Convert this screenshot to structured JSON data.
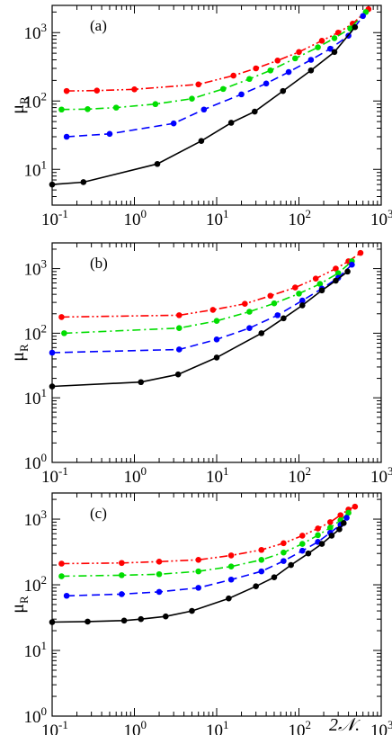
{
  "figure": {
    "xlabel": "2𝒩.",
    "ylabel_main": "μ",
    "ylabel_sub": "R"
  },
  "colors": {
    "s1": "#ff0000",
    "s2": "#00dd00",
    "s3": "#0000ff",
    "s4": "#000000"
  },
  "chart_data": [
    {
      "type": "line",
      "panel_label": "(a)",
      "xscale": "log",
      "yscale": "log",
      "xlim": [
        0.1,
        1000
      ],
      "ylim": [
        3,
        2500
      ],
      "xticks": [
        0.1,
        1,
        10,
        100,
        1000
      ],
      "yticks": [
        10,
        100,
        1000
      ],
      "xtick_labels": [
        {
          "base": "10",
          "exp": "-1"
        },
        {
          "base": "10",
          "exp": "0"
        },
        {
          "base": "10",
          "exp": "1"
        },
        {
          "base": "10",
          "exp": "2"
        },
        {
          "base": "10",
          "exp": "3"
        }
      ],
      "ytick_labels": [
        {
          "base": "10",
          "exp": "1"
        },
        {
          "base": "10",
          "exp": "2"
        },
        {
          "base": "10",
          "exp": "3"
        }
      ],
      "series": [
        {
          "style": "dash-dot-dot",
          "color_key": "s1",
          "points": [
            [
              0.15,
              140
            ],
            [
              0.35,
              142
            ],
            [
              1,
              148
            ],
            [
              6,
              175
            ],
            [
              16,
              235
            ],
            [
              30,
              300
            ],
            [
              55,
              390
            ],
            [
              100,
              520
            ],
            [
              190,
              760
            ],
            [
              300,
              1000
            ],
            [
              450,
              1350
            ],
            [
              700,
              2200
            ]
          ]
        },
        {
          "style": "dash-dot",
          "color_key": "s2",
          "points": [
            [
              0.13,
              75
            ],
            [
              0.27,
              76
            ],
            [
              0.6,
              80
            ],
            [
              1.8,
              90
            ],
            [
              5,
              108
            ],
            [
              12,
              150
            ],
            [
              25,
              210
            ],
            [
              45,
              280
            ],
            [
              90,
              420
            ],
            [
              170,
              610
            ],
            [
              270,
              830
            ],
            [
              420,
              1150
            ],
            [
              650,
              2000
            ]
          ]
        },
        {
          "style": "dashed",
          "color_key": "s3",
          "points": [
            [
              0.15,
              30
            ],
            [
              0.5,
              33
            ],
            [
              3,
              47
            ],
            [
              7,
              75
            ],
            [
              20,
              125
            ],
            [
              40,
              180
            ],
            [
              75,
              265
            ],
            [
              140,
              400
            ],
            [
              240,
              580
            ],
            [
              400,
              900
            ],
            [
              600,
              1750
            ]
          ]
        },
        {
          "style": "solid",
          "color_key": "s4",
          "points": [
            [
              0.1,
              6
            ],
            [
              0.24,
              6.5
            ],
            [
              1.9,
              12
            ],
            [
              6.5,
              26
            ],
            [
              15,
              48
            ],
            [
              29,
              70
            ],
            [
              64,
              140
            ],
            [
              140,
              280
            ],
            [
              270,
              520
            ],
            [
              480,
              1200
            ]
          ]
        }
      ]
    },
    {
      "type": "line",
      "panel_label": "(b)",
      "xscale": "log",
      "yscale": "log",
      "xlim": [
        0.1,
        1000
      ],
      "ylim": [
        1,
        2500
      ],
      "xticks": [
        0.1,
        1,
        10,
        100,
        1000
      ],
      "yticks": [
        1,
        10,
        100,
        1000
      ],
      "xtick_labels": [
        {
          "base": "10",
          "exp": "-1"
        },
        {
          "base": "10",
          "exp": "0"
        },
        {
          "base": "10",
          "exp": "1"
        },
        {
          "base": "10",
          "exp": "2"
        },
        {
          "base": "10",
          "exp": "3"
        }
      ],
      "ytick_labels": [
        {
          "base": "10",
          "exp": "0"
        },
        {
          "base": "10",
          "exp": "1"
        },
        {
          "base": "10",
          "exp": "2"
        },
        {
          "base": "10",
          "exp": "3"
        }
      ],
      "series": [
        {
          "style": "dash-dot-dot",
          "color_key": "s1",
          "points": [
            [
              0.13,
              178
            ],
            [
              3.5,
              190
            ],
            [
              9,
              230
            ],
            [
              22,
              285
            ],
            [
              45,
              380
            ],
            [
              90,
              510
            ],
            [
              160,
              700
            ],
            [
              280,
              1000
            ],
            [
              400,
              1300
            ],
            [
              560,
              1750
            ]
          ]
        },
        {
          "style": "dash-dot",
          "color_key": "s2",
          "points": [
            [
              0.14,
              100
            ],
            [
              3.5,
              120
            ],
            [
              10,
              155
            ],
            [
              25,
              215
            ],
            [
              50,
              290
            ],
            [
              100,
              410
            ],
            [
              180,
              580
            ],
            [
              300,
              850
            ],
            [
              440,
              1300
            ]
          ]
        },
        {
          "style": "dashed",
          "color_key": "s3",
          "points": [
            [
              0.1,
              50
            ],
            [
              3.5,
              56
            ],
            [
              10,
              80
            ],
            [
              25,
              120
            ],
            [
              55,
              190
            ],
            [
              110,
              320
            ],
            [
              190,
              490
            ],
            [
              300,
              720
            ],
            [
              440,
              1150
            ]
          ]
        },
        {
          "style": "solid",
          "color_key": "s4",
          "points": [
            [
              0.1,
              15
            ],
            [
              1.2,
              17.5
            ],
            [
              3.4,
              23
            ],
            [
              10,
              42
            ],
            [
              35,
              100
            ],
            [
              65,
              170
            ],
            [
              110,
              270
            ],
            [
              190,
              460
            ],
            [
              280,
              650
            ],
            [
              390,
              900
            ]
          ]
        }
      ]
    },
    {
      "type": "line",
      "panel_label": "(c)",
      "xscale": "log",
      "yscale": "log",
      "xlim": [
        0.1,
        1000
      ],
      "ylim": [
        1,
        2500
      ],
      "xticks": [
        0.1,
        1,
        10,
        100,
        1000
      ],
      "yticks": [
        1,
        10,
        100,
        1000
      ],
      "xtick_labels": [
        {
          "base": "10",
          "exp": "-1"
        },
        {
          "base": "10",
          "exp": "0"
        },
        {
          "base": "10",
          "exp": "1"
        },
        {
          "base": "10",
          "exp": "2"
        },
        {
          "base": "10",
          "exp": "3"
        }
      ],
      "ytick_labels": [
        {
          "base": "10",
          "exp": "0"
        },
        {
          "base": "10",
          "exp": "1"
        },
        {
          "base": "10",
          "exp": "2"
        },
        {
          "base": "10",
          "exp": "3"
        }
      ],
      "series": [
        {
          "style": "dash-dot-dot",
          "color_key": "s1",
          "points": [
            [
              0.13,
              210
            ],
            [
              0.7,
              215
            ],
            [
              2,
              225
            ],
            [
              6,
              240
            ],
            [
              15,
              280
            ],
            [
              35,
              340
            ],
            [
              65,
              430
            ],
            [
              110,
              560
            ],
            [
              170,
              720
            ],
            [
              240,
              900
            ],
            [
              320,
              1150
            ],
            [
              400,
              1400
            ],
            [
              480,
              1550
            ]
          ]
        },
        {
          "style": "dash-dot",
          "color_key": "s2",
          "points": [
            [
              0.13,
              135
            ],
            [
              0.7,
              140
            ],
            [
              2,
              145
            ],
            [
              6,
              160
            ],
            [
              15,
              190
            ],
            [
              35,
              240
            ],
            [
              65,
              310
            ],
            [
              110,
              420
            ],
            [
              170,
              570
            ],
            [
              240,
              740
            ],
            [
              320,
              960
            ],
            [
              400,
              1250
            ]
          ]
        },
        {
          "style": "dashed",
          "color_key": "s3",
          "points": [
            [
              0.15,
              68
            ],
            [
              0.7,
              72
            ],
            [
              2,
              78
            ],
            [
              6,
              90
            ],
            [
              15,
              120
            ],
            [
              35,
              160
            ],
            [
              65,
              230
            ],
            [
              110,
              330
            ],
            [
              170,
              450
            ],
            [
              240,
              620
            ],
            [
              320,
              820
            ],
            [
              380,
              1050
            ]
          ]
        },
        {
          "style": "solid",
          "color_key": "s4",
          "points": [
            [
              0.1,
              27
            ],
            [
              0.27,
              27.5
            ],
            [
              0.75,
              28.5
            ],
            [
              1.2,
              30
            ],
            [
              2.4,
              33
            ],
            [
              5,
              40
            ],
            [
              14,
              62
            ],
            [
              30,
              95
            ],
            [
              50,
              130
            ],
            [
              80,
              200
            ],
            [
              130,
              300
            ],
            [
              190,
              420
            ],
            [
              250,
              560
            ],
            [
              310,
              700
            ],
            [
              350,
              870
            ]
          ]
        }
      ]
    }
  ]
}
